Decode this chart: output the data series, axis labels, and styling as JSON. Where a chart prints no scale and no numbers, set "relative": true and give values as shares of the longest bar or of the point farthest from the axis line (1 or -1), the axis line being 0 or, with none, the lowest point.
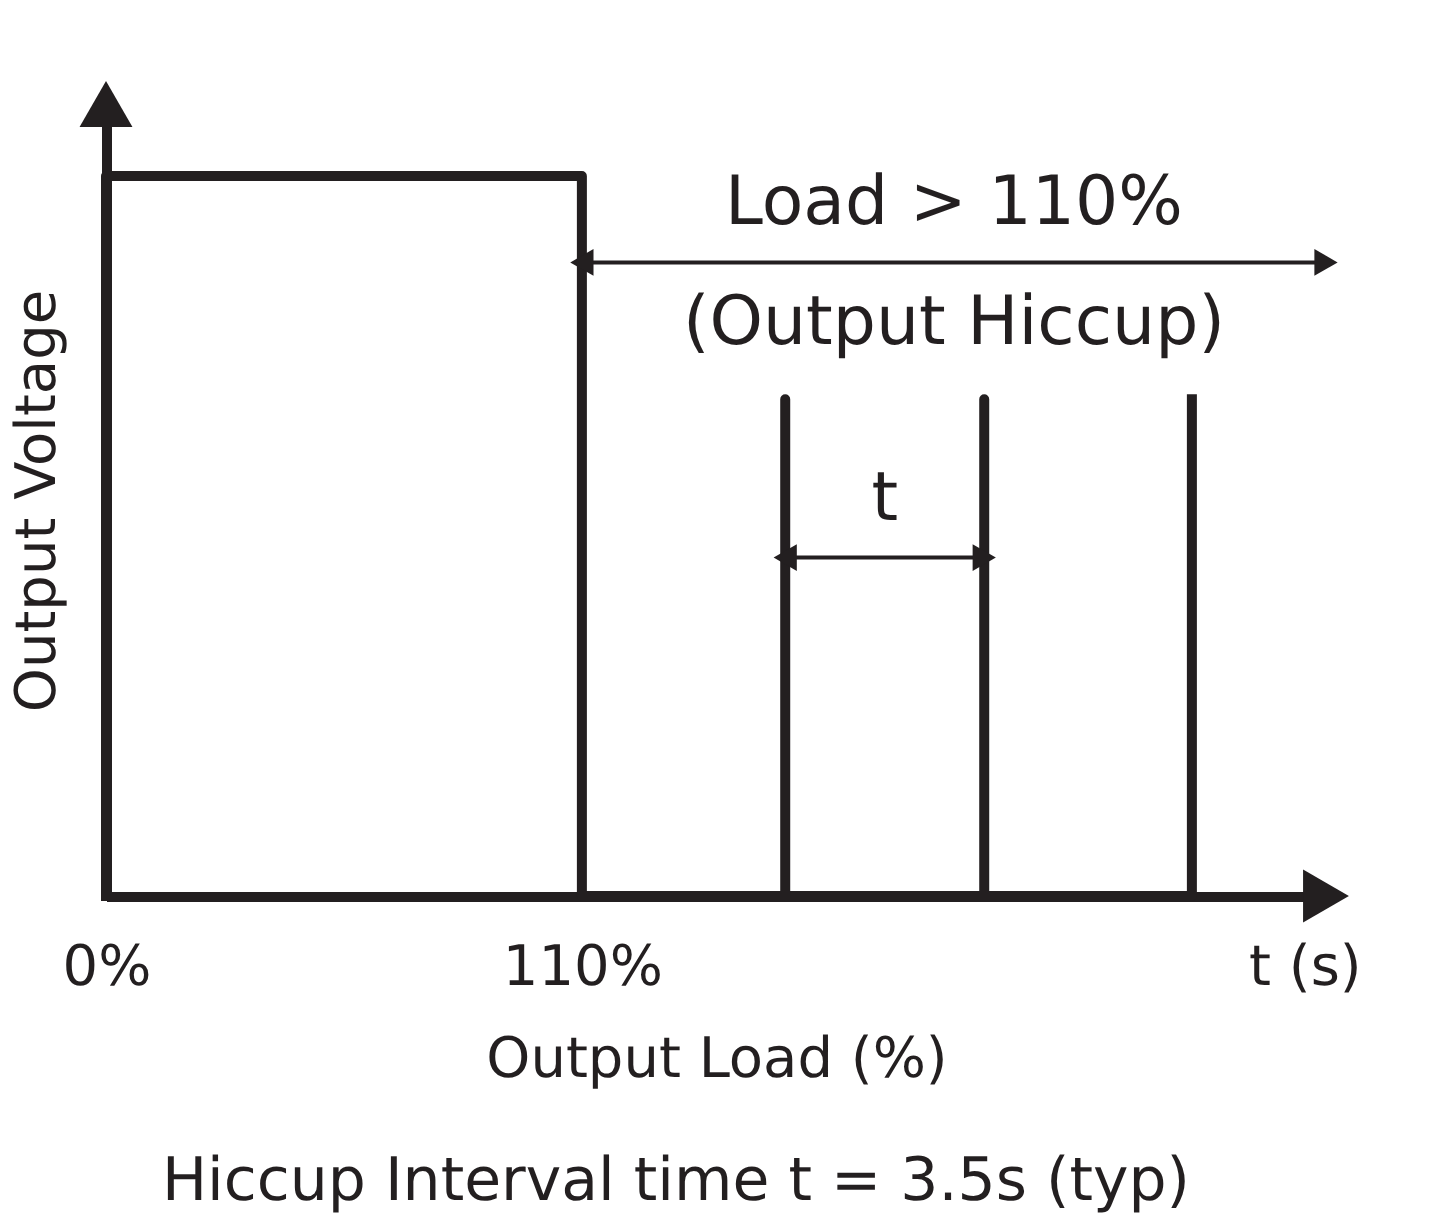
{
  "chart_data": {
    "type": "line",
    "relative": true,
    "xlabel": "Output Load (%)",
    "ylabel": "Output Voltage",
    "x": [
      0,
      0,
      110,
      110,
      157,
      157,
      157,
      203,
      203,
      203,
      251,
      251
    ],
    "series": [
      {
        "color": "#231f20",
        "values": [
          0,
          1,
          1,
          0,
          0,
          0.69,
          0,
          0,
          0.69,
          0,
          0,
          0.69
        ]
      }
    ],
    "xlim": [
      0,
      282
    ],
    "xticks": [
      {
        "value": 0,
        "label": "0%"
      },
      {
        "value": 110,
        "label": "110%"
      },
      {
        "value": 277,
        "label": "t (s)"
      }
    ],
    "annotations": [
      {
        "text": "Load > 110%",
        "x": 110,
        "y": 0.88
      },
      "(Output Hiccup)",
      {
        "text": "t",
        "x": 157,
        "y": 0.47
      },
      "Hiccup Interval time t = 3.5s (typ)"
    ],
    "grid": false,
    "marker": "none",
    "line_style": "solid"
  }
}
